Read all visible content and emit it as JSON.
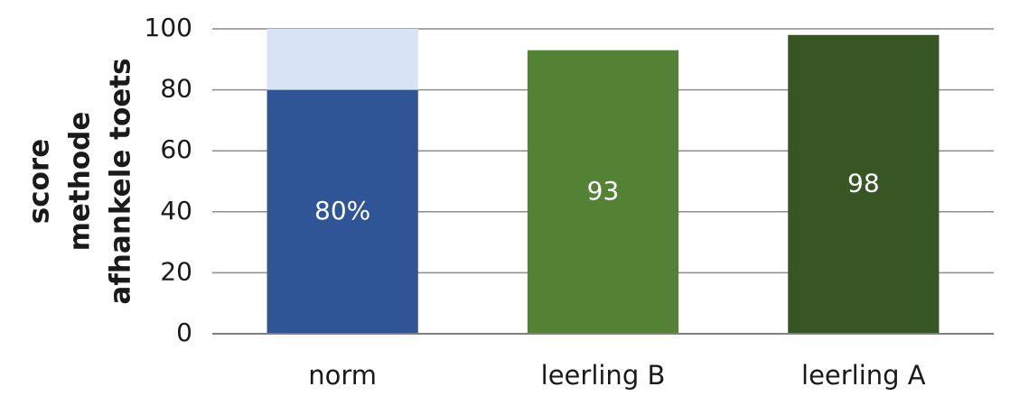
{
  "chart_data": {
    "type": "bar",
    "stacked": true,
    "ylabel": [
      "score",
      "methode",
      "afhankele toets"
    ],
    "categories": [
      "norm",
      "leerling B",
      "leerling A"
    ],
    "series": [
      {
        "values": [
          80,
          93,
          98
        ],
        "colors": [
          "#2f5597",
          "#548235",
          "#375623"
        ],
        "value_labels": [
          "80%",
          "93",
          "98"
        ]
      },
      {
        "values": [
          20,
          null,
          null
        ],
        "color": "#d6e4f3"
      }
    ],
    "ylim": [
      0,
      100
    ],
    "yticks": [
      0,
      20,
      40,
      60,
      80,
      100
    ],
    "grid": true
  }
}
